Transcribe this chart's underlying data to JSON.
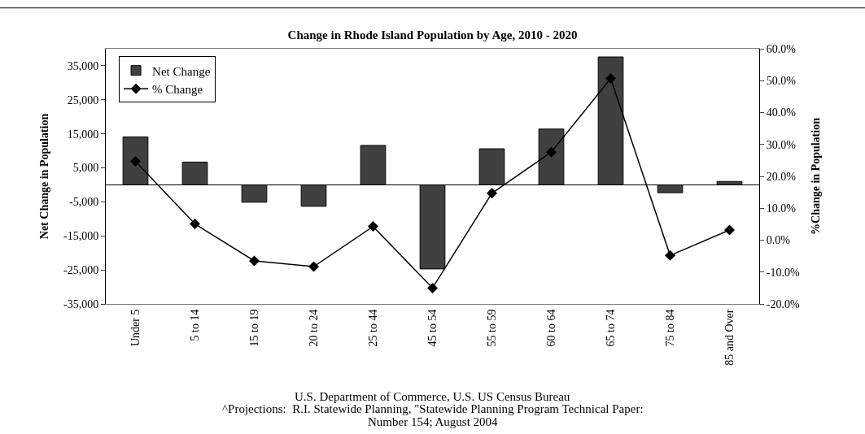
{
  "chart_data": {
    "type": "bar",
    "title": "Change in Rhode Island Population by Age, 2010 - 2020",
    "categories": [
      "Under 5",
      "5 to 14",
      "15 to 19",
      "20 to 24",
      "25 to 44",
      "45 to 54",
      "55 to 59",
      "60 to 64",
      "65 to 74",
      "75 to 84",
      "85 and Over"
    ],
    "ylabel": "Net Change in Population",
    "y2label": "%Change in Population",
    "series": [
      {
        "name": "Net Change",
        "color": "#404040",
        "values": [
          14100,
          6700,
          -5100,
          -6300,
          11600,
          -24700,
          10600,
          16400,
          37600,
          -2300,
          1000
        ]
      },
      {
        "name": "% Change",
        "type": "line",
        "axis": "y2",
        "color": "#000000",
        "marker": "diamond",
        "values": [
          24.7,
          5.1,
          -6.5,
          -8.3,
          4.3,
          -15.0,
          14.7,
          27.6,
          50.7,
          -4.8,
          3.2
        ]
      }
    ],
    "ylim": [
      -35000,
      40000
    ],
    "yticks": [
      {
        "value": -35000,
        "label": "-35,000"
      },
      {
        "value": -25000,
        "label": "-25,000"
      },
      {
        "value": -15000,
        "label": "-15,000"
      },
      {
        "value": -5000,
        "label": "-5,000"
      },
      {
        "value": 5000,
        "label": "5,000"
      },
      {
        "value": 15000,
        "label": "15,000"
      },
      {
        "value": 25000,
        "label": "25,000"
      },
      {
        "value": 35000,
        "label": "35,000"
      }
    ],
    "y2lim": [
      -20,
      60
    ],
    "y2ticks": [
      {
        "value": -20,
        "label": "-20.0%"
      },
      {
        "value": -10,
        "label": "-10.0%"
      },
      {
        "value": 0,
        "label": "0.0%"
      },
      {
        "value": 10,
        "label": "10.0%"
      },
      {
        "value": 20,
        "label": "20.0%"
      },
      {
        "value": 30,
        "label": "30.0%"
      },
      {
        "value": 40,
        "label": "40.0%"
      },
      {
        "value": 50,
        "label": "50.0%"
      },
      {
        "value": 60,
        "label": "60.0%"
      }
    ],
    "legend": "top left",
    "annotations": [
      "U.S. Department of Commerce, U.S. US Census Bureau",
      "^Projections:  R.I. Statewide Planning, \"Statewide Planning Program Technical Paper:",
      "Number 154; August 2004"
    ]
  }
}
